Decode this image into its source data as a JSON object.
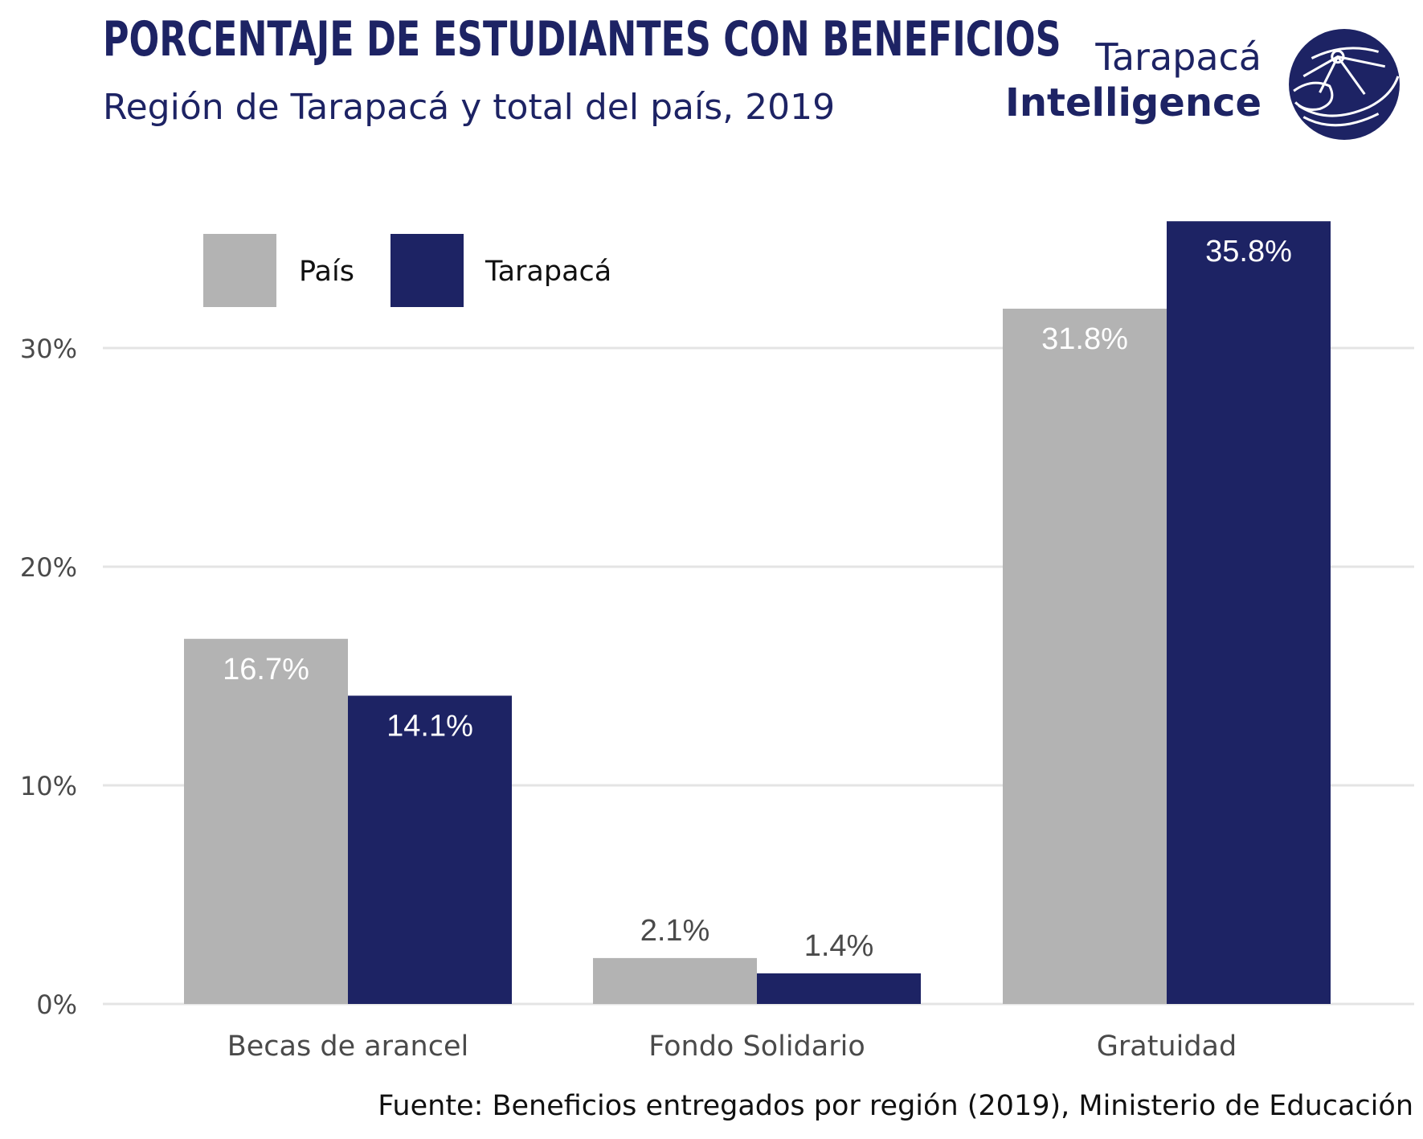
{
  "header": {
    "title": "PORCENTAJE DE ESTUDIANTES CON BENEFICIOS",
    "subtitle": "Región de Tarapacá y total del país, 2019"
  },
  "logo": {
    "line1": "Tarapacá",
    "line2": "Intelligence",
    "mark_icon": "globe-compass-icon"
  },
  "source": "Fuente: Beneficios entregados por región (2019), Ministerio de Educación",
  "colors": {
    "pais": "#b3b3b3",
    "tarapaca": "#1d2364",
    "grid": "#e4e4e4",
    "axis_text": "#4a4a4a",
    "label_on_bar": "#ffffff",
    "label_above_bar": "#4a4a4a"
  },
  "chart_data": {
    "type": "bar",
    "categories": [
      "Becas de arancel",
      "Fondo Solidario",
      "Gratuidad"
    ],
    "series": [
      {
        "name": "País",
        "values": [
          16.7,
          2.1,
          31.8
        ],
        "labels": [
          "16.7%",
          "2.1%",
          "31.8%"
        ]
      },
      {
        "name": "Tarapacá",
        "values": [
          14.1,
          1.4,
          35.8
        ],
        "labels": [
          "14.1%",
          "1.4%",
          "35.8%"
        ]
      }
    ],
    "ylim": [
      0,
      37
    ],
    "yticks": [
      0,
      10,
      20,
      30
    ],
    "ytick_labels": [
      "0%",
      "10%",
      "20%",
      "30%"
    ],
    "grid": true,
    "legend": "top-left"
  }
}
